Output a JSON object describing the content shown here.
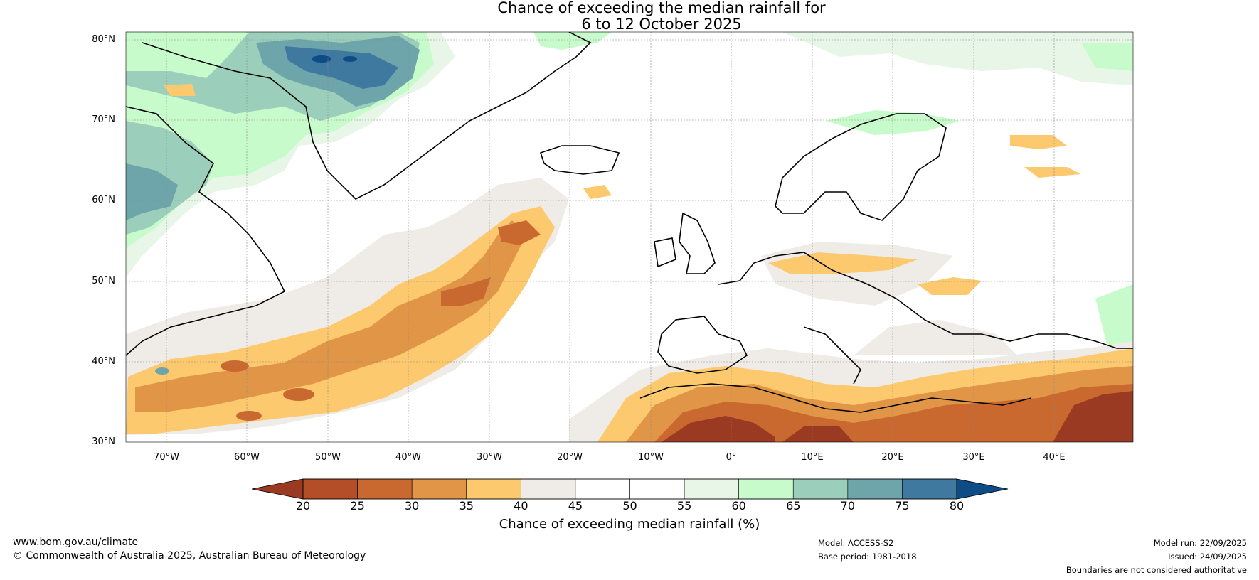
{
  "title": {
    "line1": "Chance of exceeding the median rainfall for",
    "line2": "6 to 12 October 2025"
  },
  "map": {
    "latitude_labels": [
      "80°N",
      "70°N",
      "60°N",
      "50°N",
      "40°N",
      "30°N"
    ],
    "longitude_labels": [
      "70°W",
      "60°W",
      "50°W",
      "40°W",
      "30°W",
      "20°W",
      "10°W",
      "0°",
      "10°E",
      "20°E",
      "30°E",
      "40°E"
    ]
  },
  "colorbar": {
    "ticks": [
      "20",
      "25",
      "30",
      "35",
      "40",
      "45",
      "50",
      "55",
      "60",
      "65",
      "70",
      "75",
      "80"
    ],
    "colors": [
      "#9b3a22",
      "#b34e28",
      "#c9692f",
      "#e09547",
      "#fdc96e",
      "#efebe7",
      "#ffffff",
      "#ffffff",
      "#e7f6e7",
      "#c8fbcb",
      "#9ccfbb",
      "#6ea5aa",
      "#3f79a0",
      "#0e4c86",
      "#0e4c86"
    ],
    "label": "Chance of exceeding median rainfall (%)"
  },
  "footer": {
    "url": "www.bom.gov.au/climate",
    "copyright": "© Commonwealth of Australia 2025, Australian Bureau of Meteorology",
    "model": "Model: ACCESS-S2",
    "base_period": "Base period: 1981-2018",
    "model_run": "Model run: 22/09/2025",
    "issued": "Issued: 24/09/2025",
    "disclaimer": "Boundaries are not considered authoritative"
  }
}
